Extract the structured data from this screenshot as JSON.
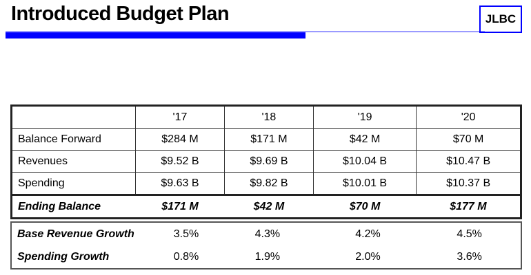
{
  "header": {
    "title": "Introduced Budget Plan",
    "logo": "JLBC"
  },
  "budget_table": {
    "columns": [
      "'17",
      "'18",
      "'19",
      "'20"
    ],
    "rows": [
      {
        "label": "Balance Forward",
        "values": [
          "$284 M",
          "$171 M",
          "$42 M",
          "$70 M"
        ]
      },
      {
        "label": "Revenues",
        "values": [
          "$9.52 B",
          "$9.69 B",
          "$10.04 B",
          "$10.47 B"
        ]
      },
      {
        "label": "Spending",
        "values": [
          "$9.63 B",
          "$9.82 B",
          "$10.01 B",
          "$10.37 B"
        ]
      },
      {
        "label": "Ending Balance",
        "values": [
          "$171 M",
          "$42 M",
          "$70 M",
          "$177 M"
        ]
      }
    ]
  },
  "growth_table": {
    "rows": [
      {
        "label": "Base Revenue Growth",
        "values": [
          "3.5%",
          "4.3%",
          "4.2%",
          "4.5%"
        ]
      },
      {
        "label": "Spending Growth",
        "values": [
          "0.8%",
          "1.9%",
          "2.0%",
          "3.6%"
        ]
      }
    ]
  }
}
